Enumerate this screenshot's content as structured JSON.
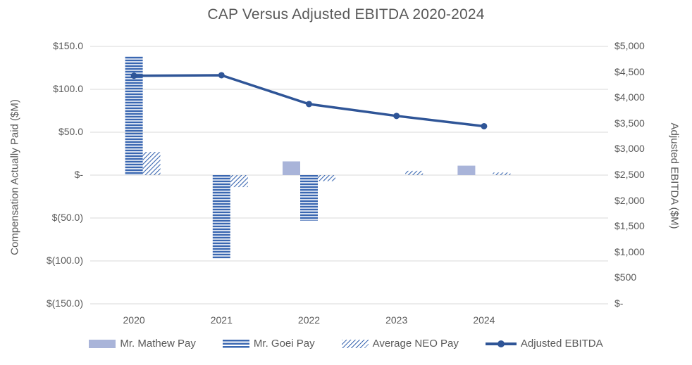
{
  "title": "CAP Versus Adjusted EBITDA 2020-2024",
  "colors": {
    "mathew_bar": "#A9B4D9",
    "stripe_blue": "#3A67B1",
    "ebitda_line": "#2F5597",
    "gridline": "#D9D9D9",
    "text_gray": "#595959"
  },
  "chart_data": {
    "type": "combo-bar-line",
    "title": "CAP Versus Adjusted EBITDA 2020-2024",
    "categories": [
      "2020",
      "2021",
      "2022",
      "2023",
      "2024"
    ],
    "bar_series": [
      {
        "name": "Mr. Mathew Pay",
        "pattern": "solid",
        "values": [
          null,
          null,
          16,
          null,
          11
        ],
        "axis": "left"
      },
      {
        "name": "Mr. Goei Pay",
        "pattern": "horizontal-stripes",
        "values": [
          138,
          -97,
          -53,
          null,
          null
        ],
        "axis": "left"
      },
      {
        "name": "Average NEO Pay",
        "pattern": "diagonal-hatch",
        "values": [
          27,
          -14,
          -7,
          5,
          3
        ],
        "axis": "left"
      }
    ],
    "line_series": {
      "name": "Adjusted EBITDA",
      "axis": "right",
      "marker": "circle",
      "values": [
        4430,
        4440,
        3880,
        3650,
        3450
      ]
    },
    "left_axis": {
      "title": "Compensation Actually Paid ($M)",
      "min": -150,
      "max": 150,
      "ticks": [
        {
          "value": 150,
          "label": "$150.0"
        },
        {
          "value": 100,
          "label": "$100.0"
        },
        {
          "value": 50,
          "label": "$50.0"
        },
        {
          "value": 0,
          "label": "$-"
        },
        {
          "value": -50,
          "label": "$(50.0)"
        },
        {
          "value": -100,
          "label": "$(100.0)"
        },
        {
          "value": -150,
          "label": "$(150.0)"
        }
      ]
    },
    "right_axis": {
      "title": "Adjusted EBITDA ($M)",
      "min": 0,
      "max": 5000,
      "ticks": [
        {
          "value": 5000,
          "label": "$5,000"
        },
        {
          "value": 4500,
          "label": "$4,500"
        },
        {
          "value": 4000,
          "label": "$4,000"
        },
        {
          "value": 3500,
          "label": "$3,500"
        },
        {
          "value": 3000,
          "label": "$3,000"
        },
        {
          "value": 2500,
          "label": "$2,500"
        },
        {
          "value": 2000,
          "label": "$2,000"
        },
        {
          "value": 1500,
          "label": "$1,500"
        },
        {
          "value": 1000,
          "label": "$1,000"
        },
        {
          "value": 500,
          "label": "$500"
        },
        {
          "value": 0,
          "label": "$-"
        }
      ]
    },
    "grid": true,
    "legend_position": "bottom"
  }
}
